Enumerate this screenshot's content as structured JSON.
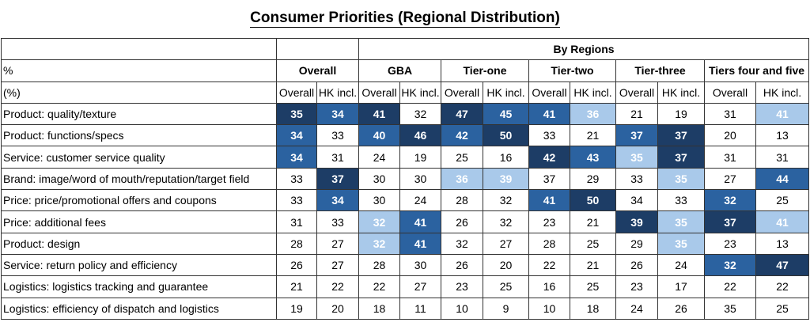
{
  "chart_data": {
    "type": "table",
    "title": "Consumer Priorities (Regional Distribution)",
    "group_header": "By Regions",
    "corner_labels": [
      "%",
      "(%)"
    ],
    "groups": [
      "Overall",
      "GBA",
      "Tier-one",
      "Tier-two",
      "Tier-three",
      "Tiers four and five"
    ],
    "subcolumns": [
      "Overall",
      "HK incl."
    ],
    "colors": {
      "light": "#a9c9ea",
      "mid": "#2b62a0",
      "dark": "#1d3d66"
    },
    "rows": [
      {
        "label": "Product: quality/texture",
        "values": [
          35,
          34,
          41,
          32,
          47,
          45,
          41,
          36,
          21,
          19,
          31,
          41
        ],
        "shading": [
          3,
          2,
          3,
          0,
          3,
          2,
          2,
          1,
          0,
          0,
          0,
          1
        ]
      },
      {
        "label": "Product: functions/specs",
        "values": [
          34,
          33,
          40,
          46,
          42,
          50,
          33,
          21,
          37,
          37,
          20,
          13
        ],
        "shading": [
          2,
          0,
          2,
          3,
          2,
          3,
          0,
          0,
          2,
          3,
          0,
          0
        ]
      },
      {
        "label": "Service: customer service quality",
        "values": [
          34,
          31,
          24,
          19,
          25,
          16,
          42,
          43,
          35,
          37,
          31,
          31
        ],
        "shading": [
          2,
          0,
          0,
          0,
          0,
          0,
          3,
          2,
          1,
          3,
          0,
          0
        ]
      },
      {
        "label": "Brand: image/word of mouth/reputation/target field",
        "values": [
          33,
          37,
          30,
          30,
          36,
          39,
          37,
          29,
          33,
          35,
          27,
          44
        ],
        "shading": [
          0,
          3,
          0,
          0,
          1,
          1,
          0,
          0,
          0,
          1,
          0,
          2
        ]
      },
      {
        "label": "Price: price/promotional offers and coupons",
        "values": [
          33,
          34,
          30,
          24,
          28,
          32,
          41,
          50,
          34,
          33,
          32,
          25
        ],
        "shading": [
          0,
          2,
          0,
          0,
          0,
          0,
          2,
          3,
          0,
          0,
          2,
          0
        ]
      },
      {
        "label": "Price: additional fees",
        "values": [
          31,
          33,
          32,
          41,
          26,
          32,
          23,
          21,
          39,
          35,
          37,
          41
        ],
        "shading": [
          0,
          0,
          1,
          2,
          0,
          0,
          0,
          0,
          3,
          1,
          3,
          1
        ]
      },
      {
        "label": "Product: design",
        "values": [
          28,
          27,
          32,
          41,
          32,
          27,
          28,
          25,
          29,
          35,
          23,
          13
        ],
        "shading": [
          0,
          0,
          1,
          2,
          0,
          0,
          0,
          0,
          0,
          1,
          0,
          0
        ]
      },
      {
        "label": "Service: return policy and efficiency",
        "values": [
          26,
          27,
          28,
          30,
          26,
          20,
          22,
          21,
          26,
          24,
          32,
          47
        ],
        "shading": [
          0,
          0,
          0,
          0,
          0,
          0,
          0,
          0,
          0,
          0,
          2,
          3
        ]
      },
      {
        "label": "Logistics: logistics tracking and guarantee",
        "values": [
          21,
          22,
          22,
          27,
          23,
          25,
          16,
          25,
          23,
          17,
          22,
          22
        ],
        "shading": [
          0,
          0,
          0,
          0,
          0,
          0,
          0,
          0,
          0,
          0,
          0,
          0
        ]
      },
      {
        "label": "Logistics: efficiency of dispatch and logistics",
        "values": [
          19,
          20,
          18,
          11,
          10,
          9,
          10,
          18,
          24,
          26,
          35,
          25
        ],
        "shading": [
          0,
          0,
          0,
          0,
          0,
          0,
          0,
          0,
          0,
          0,
          0,
          0
        ]
      }
    ]
  }
}
